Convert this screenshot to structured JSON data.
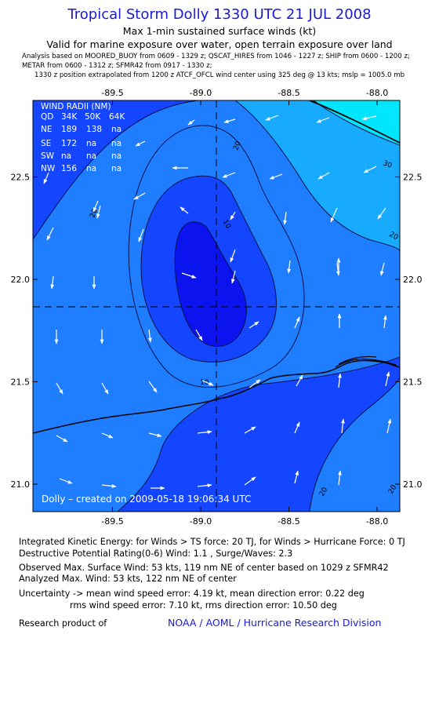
{
  "header": {
    "title": "Tropical Storm Dolly 1330 UTC 21 JUL 2008",
    "subtitle_1": "Max 1-min sustained surface winds (kt)",
    "subtitle_2": "Valid for marine exposure over water, open terrain exposure over land",
    "analysis_line_1": "Analysis based on   MOORED_BUOY from 0609 - 1329 z;  QSCAT_HIRES from 1046 - 1227 z;  SHIP from 0600 - 1200 z;",
    "analysis_line_2": "METAR from 0600 - 1312 z;  SFMR42 from 0917 - 1330 z;",
    "analysis_line_3": "1330 z position extrapolated from 1200 z ATCF_OFCL wind center using 325 deg @ 13 kts; mslp = 1005.0 mb"
  },
  "map": {
    "lon_ticks": [
      "-89.5",
      "-89.0",
      "-88.5",
      "-88.0"
    ],
    "lat_ticks": [
      "22.5",
      "22.0",
      "21.5",
      "21.0"
    ],
    "center": {
      "lon": -89.09,
      "lat": 21.87
    },
    "contour_labels": [
      "20",
      "30",
      "20",
      "20",
      "10",
      "10",
      "20",
      "20"
    ],
    "wind_radii": {
      "title": "WIND RADII (NM)",
      "header": [
        "QD",
        "34K",
        "50K",
        "64K"
      ],
      "rows": [
        [
          "NE",
          "189",
          "138",
          "na"
        ],
        [
          "SE",
          "172",
          "na",
          "na"
        ],
        [
          "SW",
          "na",
          "na",
          "na"
        ],
        [
          "NW",
          "156",
          "na",
          "na"
        ]
      ]
    },
    "created_stamp": "Dolly – created on 2009-05-18 19:06:34 UTC",
    "colors": {
      "level_0_10": "#0b14ee",
      "level_10_20": "#1446ff",
      "level_20_30": "#1f7dff",
      "level_30_40": "#18abfd",
      "level_40_plus": "#00e6fe"
    }
  },
  "footer": {
    "ike": "Integrated Kinetic Energy:  for Winds > TS force: 20 TJ,  for Winds > Hurricane Force: 0 TJ",
    "dpr": "Destructive Potential Rating(0-6)   Wind: 1.1 , Surge/Waves: 2.3",
    "obs_max": "Observed Max. Surface Wind: 53 kts, 119 nm NE of center based on 1029 z SFMR42",
    "ana_max": "Analyzed Max. Wind: 53 kts, 122 nm NE of center",
    "unc_1": "Uncertainty -> mean wind speed error: 4.19 kt,   mean direction error: 0.22 deg",
    "unc_2": "rms wind speed error: 7.10 kt,   rms direction error: 10.50 deg",
    "research_label": "Research product of",
    "research_link": "NOAA / AOML / Hurricane Research Division"
  }
}
